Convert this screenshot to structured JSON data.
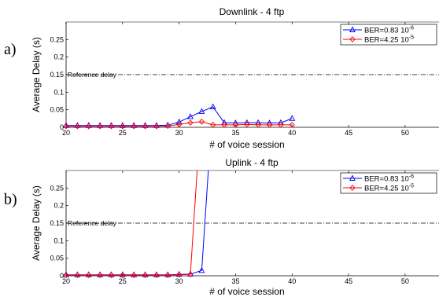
{
  "chart_data": [
    {
      "type": "line",
      "panel_label": "a)",
      "title": "Downlink - 4 ftp",
      "xlabel": "# of voice session",
      "ylabel": "Average Delay (s)",
      "xlim": [
        20,
        53
      ],
      "ylim": [
        0,
        0.3
      ],
      "x_ticks": [
        "20",
        "25",
        "30",
        "35",
        "40",
        "45",
        "50"
      ],
      "y_ticks": [
        "0",
        "0.05",
        "0.1",
        "0.15",
        "0.2",
        "0.25"
      ],
      "grid": false,
      "legend_position": "top-right",
      "reference": {
        "label": "Reference delay",
        "y": 0.15
      },
      "series": [
        {
          "name": "BER=0.83 10",
          "exp": "-6",
          "color": "#0000ff",
          "marker": "triangle",
          "x": [
            20,
            21,
            22,
            23,
            24,
            25,
            26,
            27,
            28,
            29,
            30,
            31,
            32,
            33,
            34,
            35,
            36,
            37,
            38,
            39,
            40
          ],
          "y": [
            0.005,
            0.005,
            0.005,
            0.005,
            0.005,
            0.005,
            0.005,
            0.005,
            0.005,
            0.006,
            0.015,
            0.03,
            0.045,
            0.058,
            0.013,
            0.012,
            0.013,
            0.013,
            0.012,
            0.013,
            0.025
          ]
        },
        {
          "name": "BER=4.25 10",
          "exp": "-5",
          "color": "#ff0000",
          "marker": "diamond",
          "x": [
            20,
            21,
            22,
            23,
            24,
            25,
            26,
            27,
            28,
            29,
            30,
            31,
            32,
            33,
            34,
            35,
            36,
            37,
            38,
            39,
            40
          ],
          "y": [
            0.003,
            0.003,
            0.003,
            0.003,
            0.003,
            0.003,
            0.003,
            0.003,
            0.003,
            0.004,
            0.008,
            0.013,
            0.016,
            0.007,
            0.007,
            0.007,
            0.008,
            0.007,
            0.007,
            0.007,
            0.007
          ]
        }
      ]
    },
    {
      "type": "line",
      "panel_label": "b)",
      "title": "Uplink - 4 ftp",
      "xlabel": "# of voice session",
      "ylabel": "Average Delay (s)",
      "xlim": [
        20,
        53
      ],
      "ylim": [
        0,
        0.3
      ],
      "x_ticks": [
        "20",
        "25",
        "30",
        "35",
        "40",
        "45",
        "50"
      ],
      "y_ticks": [
        "0",
        "0.05",
        "0.1",
        "0.15",
        "0.2",
        "0.25"
      ],
      "grid": false,
      "legend_position": "top-right",
      "reference": {
        "label": "Reference delay",
        "y": 0.15
      },
      "series": [
        {
          "name": "BER=0.83 10",
          "exp": "-6",
          "color": "#0000ff",
          "marker": "triangle",
          "x": [
            20,
            21,
            22,
            23,
            24,
            25,
            26,
            27,
            28,
            29,
            30,
            31,
            32,
            33
          ],
          "y": [
            0.003,
            0.003,
            0.003,
            0.003,
            0.003,
            0.003,
            0.003,
            0.003,
            0.003,
            0.003,
            0.004,
            0.005,
            0.015,
            0.5
          ]
        },
        {
          "name": "BER=4.25 10",
          "exp": "-5",
          "color": "#ff0000",
          "marker": "diamond",
          "x": [
            20,
            21,
            22,
            23,
            24,
            25,
            26,
            27,
            28,
            29,
            30,
            31,
            32
          ],
          "y": [
            0.002,
            0.002,
            0.002,
            0.002,
            0.002,
            0.002,
            0.002,
            0.002,
            0.002,
            0.002,
            0.003,
            0.004,
            0.5
          ]
        }
      ]
    }
  ]
}
